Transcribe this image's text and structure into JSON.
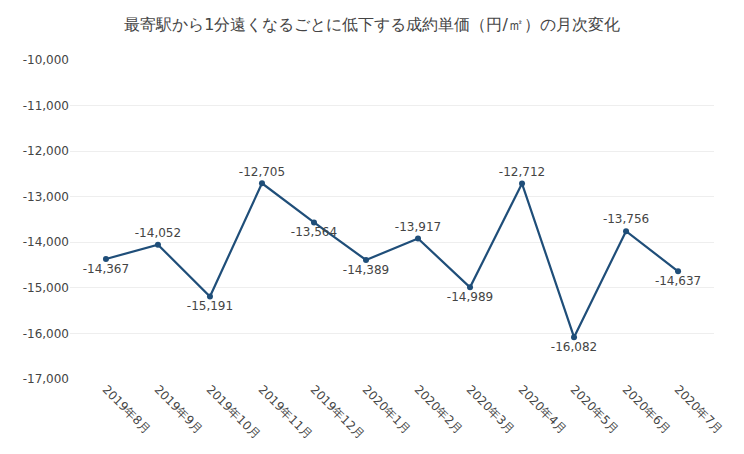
{
  "chart_data": {
    "type": "line",
    "title": "最寄駅から1分遠くなるごとに低下する成約単価（円/㎡）の月次変化",
    "categories": [
      "2019年8月",
      "2019年9月",
      "2019年10月",
      "2019年11月",
      "2019年12月",
      "2020年1月",
      "2020年2月",
      "2020年3月",
      "2020年4月",
      "2020年5月",
      "2020年6月",
      "2020年7月"
    ],
    "values": [
      -14367,
      -14052,
      -15191,
      -12705,
      -13564,
      -14389,
      -13917,
      -14989,
      -12712,
      -16082,
      -13756,
      -14637
    ],
    "value_labels": [
      "-14,367",
      "-14,052",
      "-15,191",
      "-12,705",
      "-13,564",
      "-14,389",
      "-13,917",
      "-14,989",
      "-12,712",
      "-16,082",
      "-13,756",
      "-14,637"
    ],
    "color": "#1f4e79",
    "marker": "circle",
    "data_labels": true,
    "ylim": [
      -17000,
      -10000
    ],
    "yticks": [
      {
        "value": -10000,
        "label": "-10,000"
      },
      {
        "value": -11000,
        "label": "-11,000"
      },
      {
        "value": -12000,
        "label": "-12,000"
      },
      {
        "value": -13000,
        "label": "-13,000"
      },
      {
        "value": -14000,
        "label": "-14,000"
      },
      {
        "value": -15000,
        "label": "-15,000"
      },
      {
        "value": -16000,
        "label": "-16,000"
      },
      {
        "value": -17000,
        "label": "-17,000"
      }
    ],
    "grid": true
  }
}
